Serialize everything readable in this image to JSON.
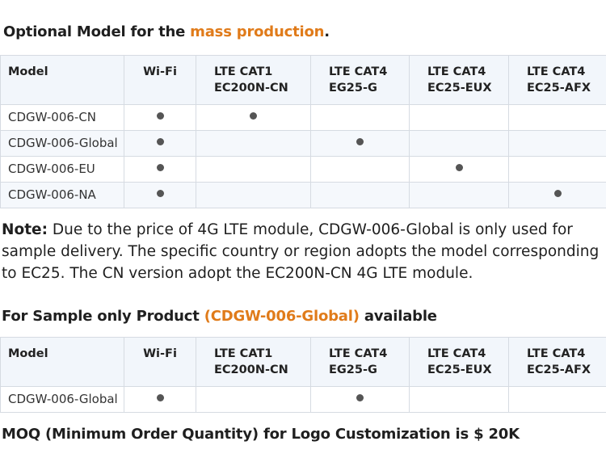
{
  "section1": {
    "title_prefix": "Optional Model for the ",
    "title_accent": "mass production",
    "title_suffix": "."
  },
  "table_headers": {
    "model": "Model",
    "wifi": "Wi-Fi",
    "lte1_line1": "LTE CAT1",
    "lte1_line2": "EC200N-CN",
    "lte2_line1": "LTE CAT4",
    "lte2_line2": "EG25-G",
    "lte3_line1": "LTE CAT4",
    "lte3_line2": "EC25-EUX",
    "lte4_line1": "LTE CAT4",
    "lte4_line2": "EC25-AFX"
  },
  "table1": {
    "rows": [
      {
        "model": "CDGW-006-CN",
        "marks": [
          true,
          true,
          false,
          false,
          false
        ]
      },
      {
        "model": "CDGW-006-Global",
        "marks": [
          true,
          false,
          true,
          false,
          false
        ]
      },
      {
        "model": "CDGW-006-EU",
        "marks": [
          true,
          false,
          false,
          true,
          false
        ]
      },
      {
        "model": "CDGW-006-NA",
        "marks": [
          true,
          false,
          false,
          false,
          true
        ]
      }
    ]
  },
  "note": {
    "label": "Note:",
    "text": " Due to the price of 4G LTE module, CDGW-006-Global is only used for sample delivery. The specific country or region adopts the model corresponding to EC25. The CN version adopt the EC200N-CN 4G LTE module."
  },
  "section2": {
    "title_prefix": "For Sample only Product ",
    "title_accent": "(CDGW-006-Global)",
    "title_suffix": " available"
  },
  "table2": {
    "rows": [
      {
        "model": "CDGW-006-Global",
        "marks": [
          true,
          false,
          true,
          false,
          false
        ]
      }
    ]
  },
  "moq": {
    "text": "MOQ (Minimum Order Quantity) for Logo Customization is $ 20K"
  },
  "colors": {
    "accent": "#e07b1a",
    "header_bg": "#f2f6fb",
    "border": "#d6dbe2",
    "dot": "#555555"
  }
}
